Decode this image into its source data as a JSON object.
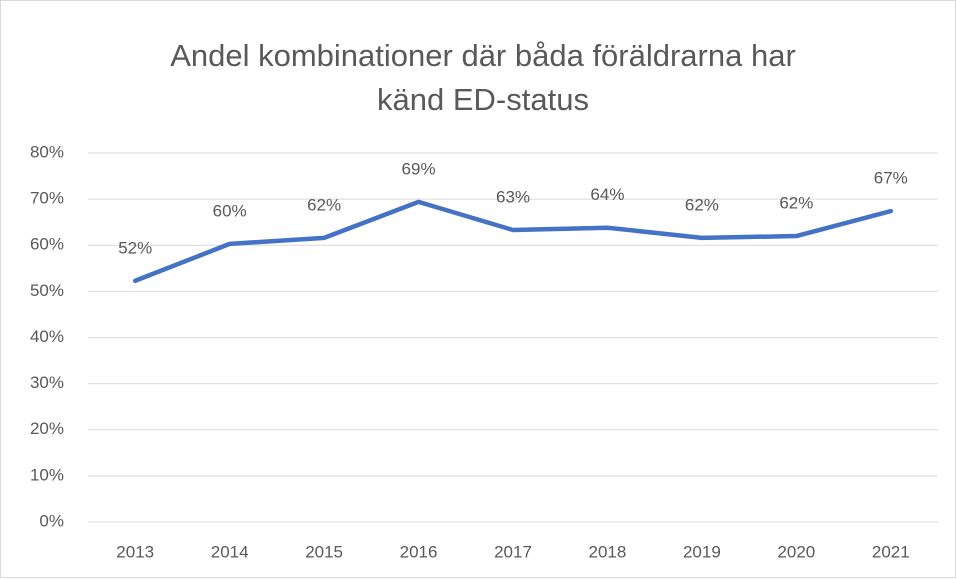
{
  "chart_data": {
    "type": "line",
    "title": [
      "Andel kombinationer där båda föräldrarna har",
      "känd ED-status"
    ],
    "categories": [
      "2013",
      "2014",
      "2015",
      "2016",
      "2017",
      "2018",
      "2019",
      "2020",
      "2021"
    ],
    "values": [
      52.3,
      60.3,
      61.6,
      69.4,
      63.3,
      63.8,
      61.6,
      62.0,
      67.4
    ],
    "value_labels": [
      "52%",
      "60%",
      "62%",
      "69%",
      "63%",
      "64%",
      "62%",
      "62%",
      "67%"
    ],
    "color": "#4472c4",
    "ylim": [
      0,
      80
    ],
    "yticks": [
      {
        "value": 0,
        "label": "0%"
      },
      {
        "value": 10,
        "label": "10%"
      },
      {
        "value": 20,
        "label": "20%"
      },
      {
        "value": 30,
        "label": "30%"
      },
      {
        "value": 40,
        "label": "40%"
      },
      {
        "value": 50,
        "label": "50%"
      },
      {
        "value": 60,
        "label": "60%"
      },
      {
        "value": 70,
        "label": "70%"
      },
      {
        "value": 80,
        "label": "80%"
      }
    ],
    "grid": true
  }
}
